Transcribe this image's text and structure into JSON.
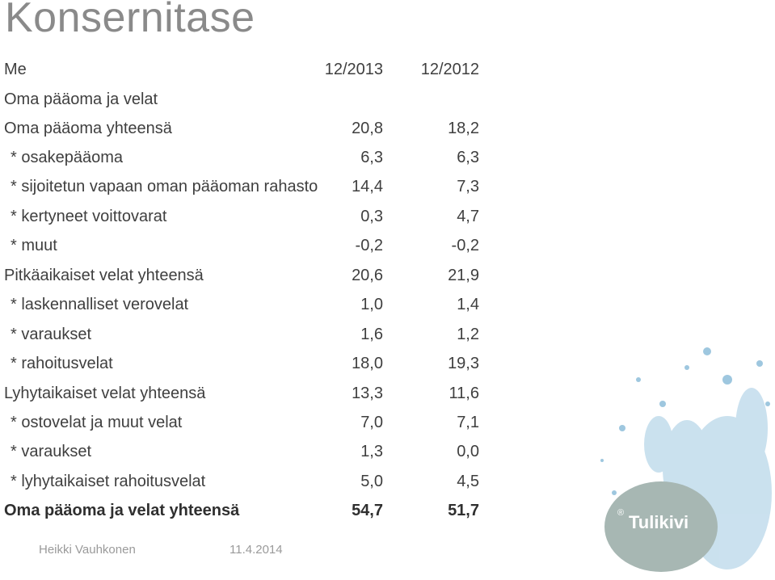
{
  "title": "Konsernitase",
  "header": {
    "label": "Me",
    "col1": "12/2013",
    "col2": "12/2012"
  },
  "rows": [
    {
      "label": "Oma pääoma ja velat",
      "v1": "",
      "v2": ""
    },
    {
      "label": "Oma pääoma yhteensä",
      "v1": "20,8",
      "v2": "18,2"
    },
    {
      "label": "* osakepääoma",
      "v1": "6,3",
      "v2": "6,3"
    },
    {
      "label": "* sijoitetun vapaan oman pääoman rahasto",
      "v1": "14,4",
      "v2": "7,3"
    },
    {
      "label": "* kertyneet voittovarat",
      "v1": "0,3",
      "v2": "4,7"
    },
    {
      "label": "* muut",
      "v1": "-0,2",
      "v2": "-0,2"
    },
    {
      "label": "Pitkäaikaiset velat yhteensä",
      "v1": "20,6",
      "v2": "21,9"
    },
    {
      "label": "* laskennalliset verovelat",
      "v1": "1,0",
      "v2": "1,4"
    },
    {
      "label": "* varaukset",
      "v1": "1,6",
      "v2": "1,2"
    },
    {
      "label": "* rahoitusvelat",
      "v1": "18,0",
      "v2": "19,3"
    },
    {
      "label": "Lyhytaikaiset velat yhteensä",
      "v1": "13,3",
      "v2": "11,6"
    },
    {
      "label": "* ostovelat ja muut velat",
      "v1": "7,0",
      "v2": "7,1"
    },
    {
      "label": "* varaukset",
      "v1": "1,3",
      "v2": "0,0"
    },
    {
      "label": "* lyhytaikaiset rahoitusvelat",
      "v1": "5,0",
      "v2": "4,5"
    },
    {
      "label": "Oma pääoma ja velat yhteensä",
      "v1": "54,7",
      "v2": "51,7"
    }
  ],
  "footer": {
    "author": "Heikki Vauhkonen",
    "date": "11.4.2014"
  },
  "logo": {
    "text": "Tulikivi",
    "reg": "®"
  },
  "colors": {
    "title": "#8a8a8a",
    "text": "#3f3f3f",
    "logo_disc": "#a7b7b3",
    "water": "#9ec7df"
  }
}
